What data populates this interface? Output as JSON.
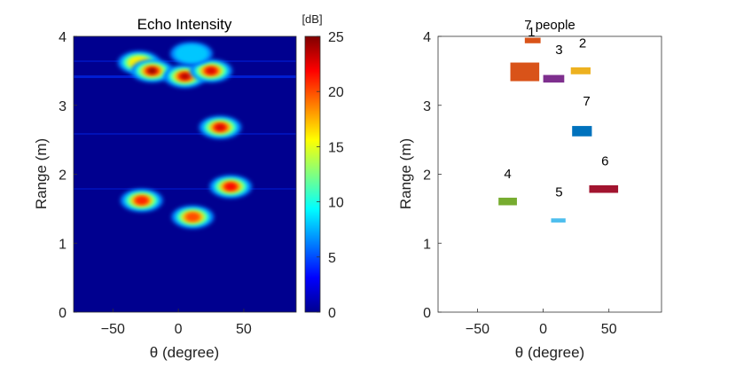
{
  "chart_data": [
    {
      "type": "heatmap",
      "title": "Echo Intensity",
      "xlabel": "θ (degree)",
      "ylabel": "Range (m)",
      "xlim": [
        -80,
        90
      ],
      "ylim": [
        0,
        4
      ],
      "x_ticks": [
        -50,
        0,
        50
      ],
      "x_tick_labels": [
        "−50",
        "0",
        "50"
      ],
      "y_ticks": [
        0,
        1,
        2,
        3,
        4
      ],
      "y_tick_labels": [
        "0",
        "1",
        "2",
        "3",
        "4"
      ],
      "colorbar": {
        "unit": "[dB]",
        "range": [
          0,
          25
        ],
        "ticks": [
          0,
          5,
          10,
          15,
          20,
          25
        ],
        "tick_labels": [
          "0",
          "5",
          "10",
          "15",
          "20",
          "25"
        ],
        "colormap": "jet"
      },
      "blobs": [
        {
          "theta": -30,
          "range": 3.62,
          "peak_db": 16
        },
        {
          "theta": -20,
          "range": 3.5,
          "peak_db": 25
        },
        {
          "theta": 5,
          "range": 3.42,
          "peak_db": 24
        },
        {
          "theta": 25,
          "range": 3.5,
          "peak_db": 23
        },
        {
          "theta": 10,
          "range": 3.75,
          "peak_db": 8
        },
        {
          "theta": 32,
          "range": 2.68,
          "peak_db": 23
        },
        {
          "theta": 40,
          "range": 1.82,
          "peak_db": 22
        },
        {
          "theta": -28,
          "range": 1.62,
          "peak_db": 21
        },
        {
          "theta": 11,
          "range": 1.38,
          "peak_db": 20
        }
      ]
    },
    {
      "type": "scatter",
      "title": "7 people",
      "xlabel": "θ (degree)",
      "ylabel": "Range (m)",
      "xlim": [
        -80,
        90
      ],
      "ylim": [
        0,
        4
      ],
      "x_ticks": [
        -50,
        0,
        50
      ],
      "x_tick_labels": [
        "−50",
        "0",
        "50"
      ],
      "y_ticks": [
        0,
        1,
        2,
        3,
        4
      ],
      "y_tick_labels": [
        "0",
        "1",
        "2",
        "3",
        "4"
      ],
      "clusters": [
        {
          "id": "1",
          "theta_min": -25,
          "theta_max": -3,
          "range_min": 3.35,
          "range_max": 3.62,
          "color": "#d95319",
          "label_theta": -9,
          "label_range": 4.0
        },
        {
          "id": "1b",
          "theta_min": -14,
          "theta_max": -2,
          "range_min": 3.9,
          "range_max": 3.98,
          "color": "#d95319",
          "label": false
        },
        {
          "id": "2",
          "theta_min": 21,
          "theta_max": 36,
          "range_min": 3.45,
          "range_max": 3.55,
          "color": "#edb120",
          "label_theta": 30,
          "label_range": 3.84
        },
        {
          "id": "3",
          "theta_min": 0,
          "theta_max": 16,
          "range_min": 3.33,
          "range_max": 3.44,
          "color": "#7e2f8e",
          "label_theta": 12,
          "label_range": 3.74
        },
        {
          "id": "4",
          "theta_min": -34,
          "theta_max": -20,
          "range_min": 1.55,
          "range_max": 1.66,
          "color": "#77ac30",
          "label_theta": -27,
          "label_range": 1.94
        },
        {
          "id": "5",
          "theta_min": 6,
          "theta_max": 17,
          "range_min": 1.3,
          "range_max": 1.36,
          "color": "#4dbeee",
          "label_theta": 12,
          "label_range": 1.68
        },
        {
          "id": "6",
          "theta_min": 35,
          "theta_max": 57,
          "range_min": 1.73,
          "range_max": 1.84,
          "color": "#a2142f",
          "label_theta": 47,
          "label_range": 2.13
        },
        {
          "id": "7",
          "theta_min": 22,
          "theta_max": 37,
          "range_min": 2.55,
          "range_max": 2.7,
          "color": "#0072bd",
          "label_theta": 33,
          "label_range": 3.0
        }
      ]
    }
  ]
}
